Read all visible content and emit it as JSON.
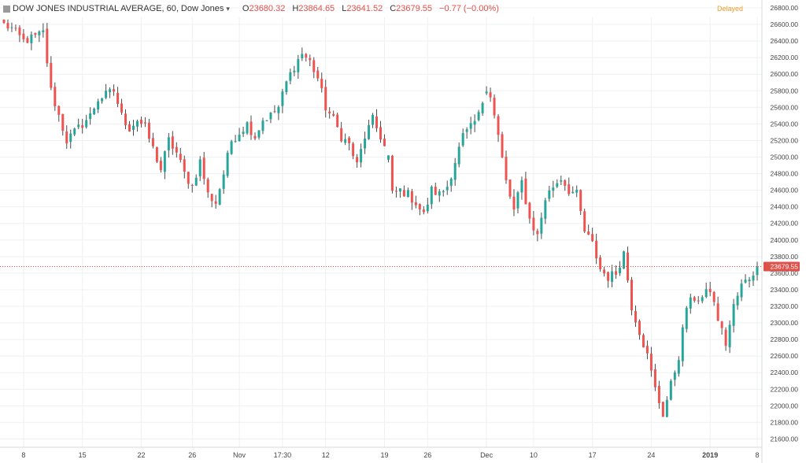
{
  "header": {
    "symbol_title": "DOW JONES INDUSTRIAL AVERAGE, 60, Dow Jones",
    "open_label": "O",
    "open_value": "23680.32",
    "high_label": "H",
    "high_value": "23864.65",
    "low_label": "L",
    "low_value": "23641.52",
    "close_label": "C",
    "close_value": "23679.55",
    "change": "−0.77 (−0.00%)",
    "status": "Delayed"
  },
  "colors": {
    "up": "#26a69a",
    "down": "#ef5350",
    "grid": "#eef0f3",
    "axis_text": "#444444",
    "price_line": "#e0504a"
  },
  "chart_data": {
    "type": "candlestick",
    "title": "",
    "xlabel": "",
    "ylabel": "",
    "ylim": [
      21500,
      26800
    ],
    "y_ticks": [
      21600,
      21800,
      22000,
      22200,
      22400,
      22600,
      22800,
      23000,
      23200,
      23400,
      23600,
      23800,
      24000,
      24200,
      24400,
      24600,
      24800,
      25000,
      25200,
      25400,
      25600,
      25800,
      26000,
      26200,
      26400,
      26600,
      26800
    ],
    "x_tick_labels": [
      "8",
      "15",
      "22",
      "26",
      "Nov",
      "17:30",
      "12",
      "19",
      "26",
      "Dec",
      "10",
      "17",
      "24",
      "2019",
      "8"
    ],
    "x_tick_index": [
      5,
      20,
      35,
      48,
      60,
      71,
      82,
      97,
      108,
      123,
      135,
      150,
      165,
      180,
      192
    ],
    "last_price": 23679.55,
    "last_price_label": "23679.55",
    "grid": true,
    "close_path": [
      [
        0,
        26600
      ],
      [
        2,
        26550
      ],
      [
        5,
        26400
      ],
      [
        8,
        26450
      ],
      [
        10,
        26500
      ],
      [
        12,
        25800
      ],
      [
        14,
        25500
      ],
      [
        16,
        25200
      ],
      [
        18,
        25300
      ],
      [
        20,
        25400
      ],
      [
        22,
        25500
      ],
      [
        24,
        25700
      ],
      [
        26,
        25750
      ],
      [
        28,
        25800
      ],
      [
        30,
        25500
      ],
      [
        32,
        25350
      ],
      [
        34,
        25450
      ],
      [
        36,
        25350
      ],
      [
        38,
        25100
      ],
      [
        40,
        24850
      ],
      [
        42,
        25200
      ],
      [
        44,
        25050
      ],
      [
        46,
        24800
      ],
      [
        48,
        24650
      ],
      [
        50,
        24950
      ],
      [
        52,
        24550
      ],
      [
        54,
        24450
      ],
      [
        56,
        24800
      ],
      [
        58,
        25200
      ],
      [
        60,
        25300
      ],
      [
        62,
        25400
      ],
      [
        64,
        25250
      ],
      [
        66,
        25450
      ],
      [
        68,
        25500
      ],
      [
        70,
        25600
      ],
      [
        72,
        25900
      ],
      [
        74,
        26100
      ],
      [
        76,
        26250
      ],
      [
        78,
        26150
      ],
      [
        80,
        25950
      ],
      [
        82,
        25600
      ],
      [
        84,
        25450
      ],
      [
        86,
        25250
      ],
      [
        88,
        25150
      ],
      [
        90,
        24900
      ],
      [
        92,
        25250
      ],
      [
        94,
        25450
      ],
      [
        96,
        25250
      ],
      [
        98,
        25000
      ],
      [
        99,
        24550
      ],
      [
        101,
        24600
      ],
      [
        103,
        24550
      ],
      [
        105,
        24450
      ],
      [
        107,
        24300
      ],
      [
        109,
        24600
      ],
      [
        111,
        24550
      ],
      [
        113,
        24650
      ],
      [
        115,
        24950
      ],
      [
        117,
        25250
      ],
      [
        119,
        25350
      ],
      [
        121,
        25500
      ],
      [
        123,
        25850
      ],
      [
        124,
        25750
      ],
      [
        126,
        25250
      ],
      [
        128,
        24700
      ],
      [
        130,
        24350
      ],
      [
        132,
        24700
      ],
      [
        134,
        24250
      ],
      [
        136,
        24050
      ],
      [
        138,
        24500
      ],
      [
        140,
        24650
      ],
      [
        142,
        24750
      ],
      [
        144,
        24600
      ],
      [
        146,
        24550
      ],
      [
        148,
        24100
      ],
      [
        150,
        23950
      ],
      [
        152,
        23650
      ],
      [
        154,
        23550
      ],
      [
        156,
        23600
      ],
      [
        158,
        23850
      ],
      [
        160,
        23200
      ],
      [
        162,
        22900
      ],
      [
        164,
        22600
      ],
      [
        166,
        22200
      ],
      [
        168,
        21900
      ],
      [
        170,
        22250
      ],
      [
        172,
        22600
      ],
      [
        174,
        23200
      ],
      [
        176,
        23300
      ],
      [
        178,
        23300
      ],
      [
        180,
        23400
      ],
      [
        182,
        23050
      ],
      [
        184,
        22750
      ],
      [
        186,
        23200
      ],
      [
        188,
        23450
      ],
      [
        190,
        23550
      ],
      [
        192,
        23679.55
      ]
    ],
    "breaks": [
      98,
      123
    ]
  }
}
